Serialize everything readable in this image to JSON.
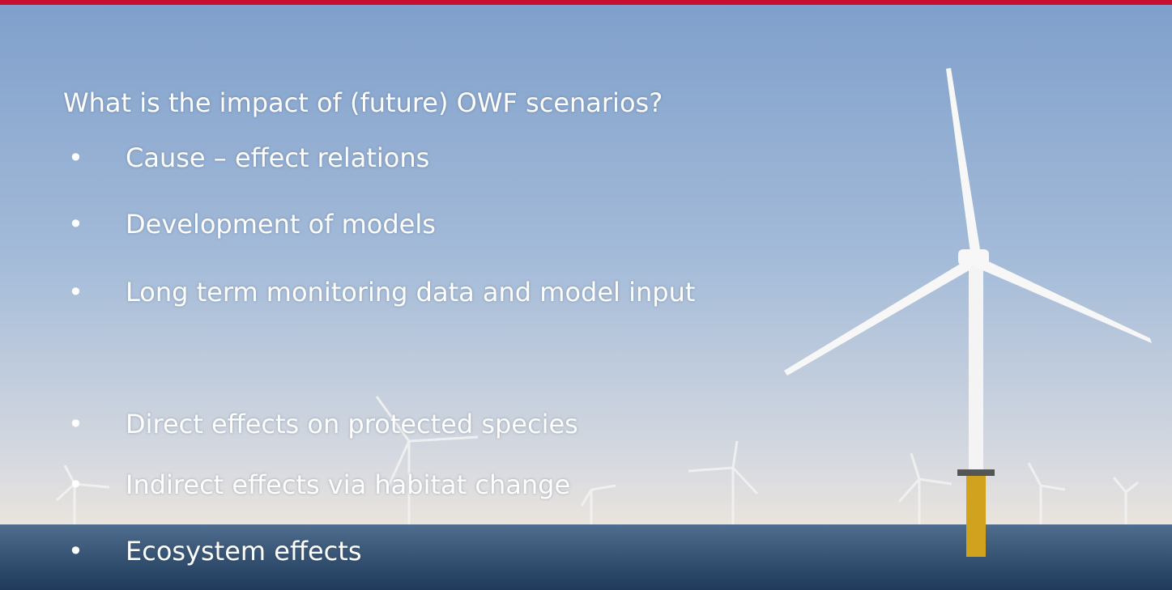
{
  "slide": {
    "heading": "What is the impact of (future) OWF scenarios?",
    "bullets": [
      "Cause – effect relations",
      "Development of models",
      "Long term monitoring data and model input",
      "Direct effects on protected species",
      "Indirect effects via habitat change",
      "Ecosystem effects"
    ],
    "bullet_symbol": "•"
  }
}
